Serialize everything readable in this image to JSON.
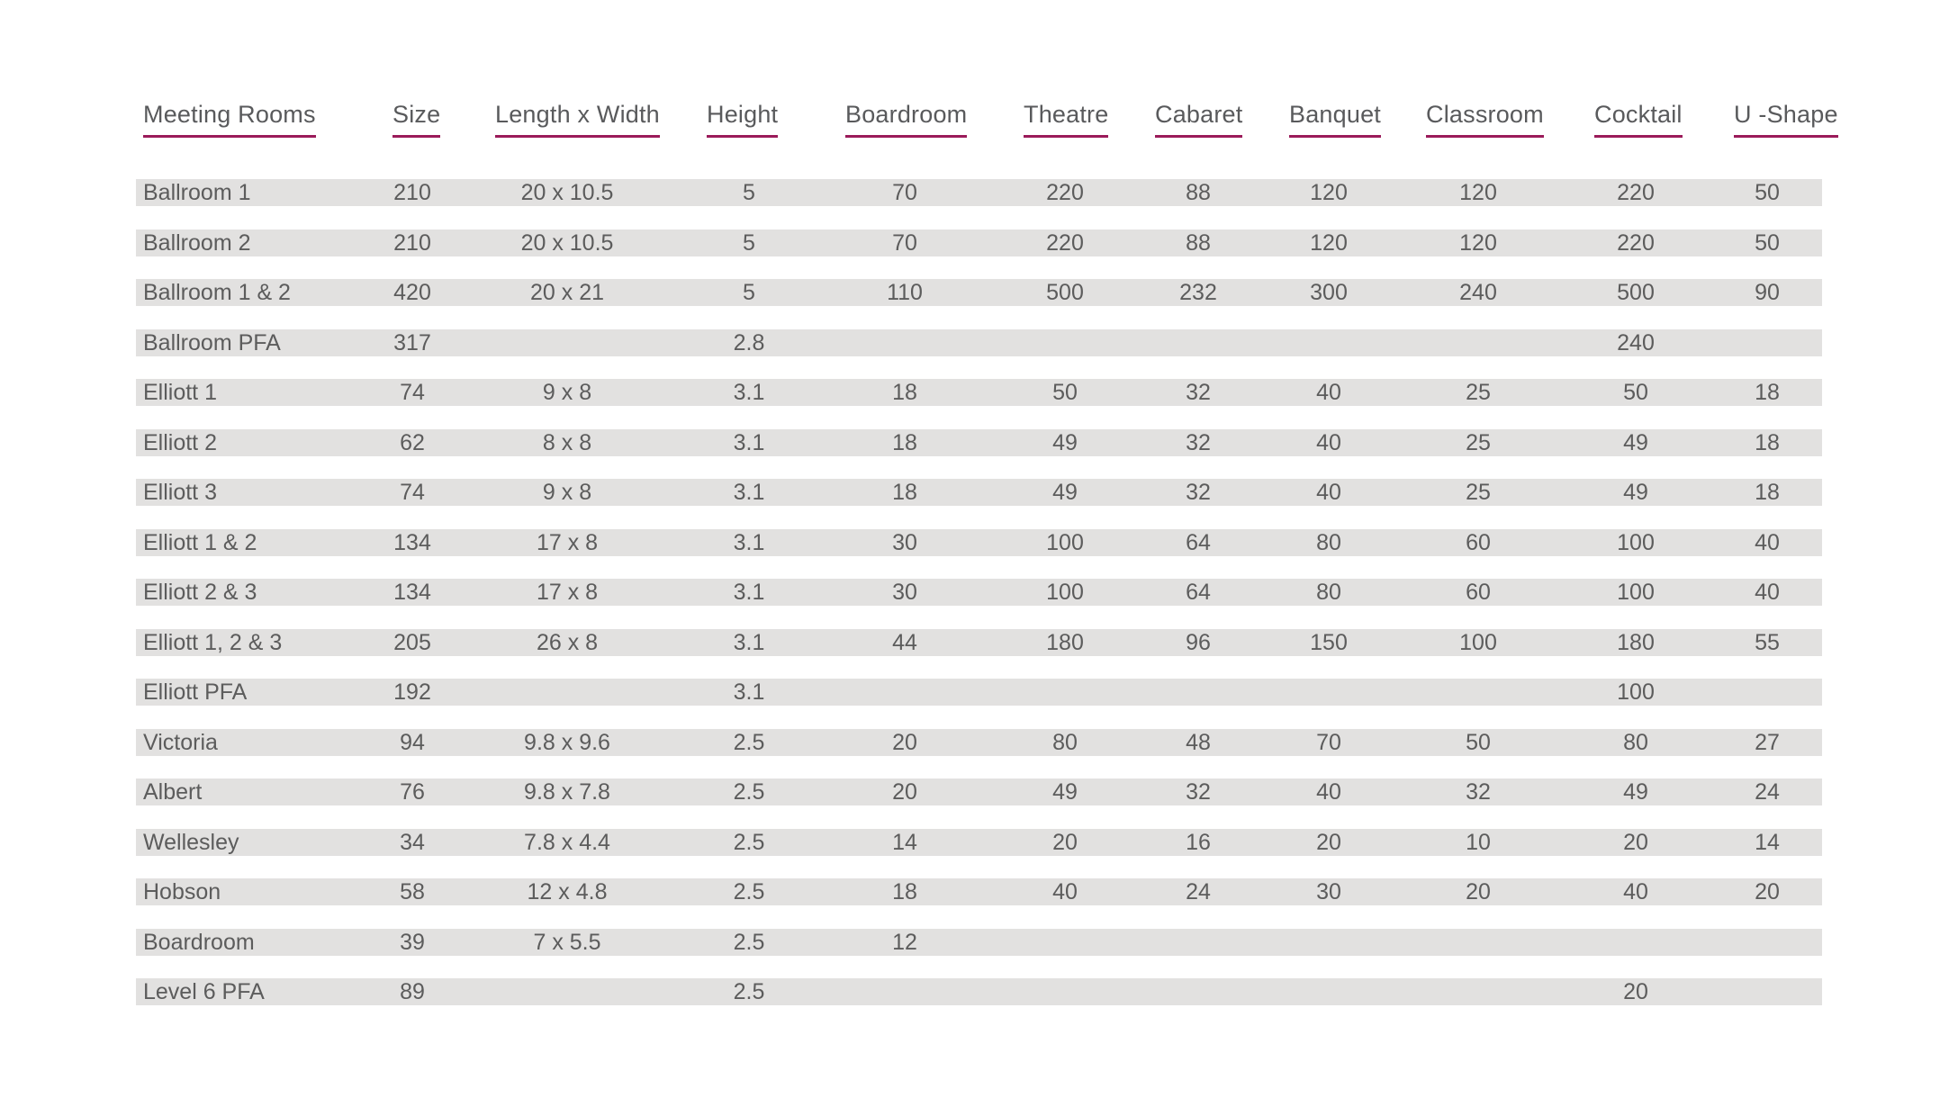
{
  "columns": [
    "Meeting Rooms",
    "Size",
    "Length x Width",
    "Height",
    "Boardroom",
    "Theatre",
    "Cabaret",
    "Banquet",
    "Classroom",
    "Cocktail",
    "U -Shape"
  ],
  "rows": [
    [
      "Ballroom 1",
      "210",
      "20 x 10.5",
      "5",
      "70",
      "220",
      "88",
      "120",
      "120",
      "220",
      "50"
    ],
    [
      "Ballroom 2",
      "210",
      "20 x 10.5",
      "5",
      "70",
      "220",
      "88",
      "120",
      "120",
      "220",
      "50"
    ],
    [
      "Ballroom 1 & 2",
      "420",
      "20 x 21",
      "5",
      "110",
      "500",
      "232",
      "300",
      "240",
      "500",
      "90"
    ],
    [
      "Ballroom PFA",
      "317",
      "",
      "2.8",
      "",
      "",
      "",
      "",
      "",
      "240",
      ""
    ],
    [
      "Elliott 1",
      "74",
      "9 x 8",
      "3.1",
      "18",
      "50",
      "32",
      "40",
      "25",
      "50",
      "18"
    ],
    [
      "Elliott 2",
      "62",
      "8 x 8",
      "3.1",
      "18",
      "49",
      "32",
      "40",
      "25",
      "49",
      "18"
    ],
    [
      "Elliott 3",
      "74",
      "9 x 8",
      "3.1",
      "18",
      "49",
      "32",
      "40",
      "25",
      "49",
      "18"
    ],
    [
      "Elliott 1 & 2",
      "134",
      "17 x 8",
      "3.1",
      "30",
      "100",
      "64",
      "80",
      "60",
      "100",
      "40"
    ],
    [
      "Elliott 2 & 3",
      "134",
      "17 x 8",
      "3.1",
      "30",
      "100",
      "64",
      "80",
      "60",
      "100",
      "40"
    ],
    [
      "Elliott 1, 2 & 3",
      "205",
      "26 x 8",
      "3.1",
      "44",
      "180",
      "96",
      "150",
      "100",
      "180",
      "55"
    ],
    [
      "Elliott PFA",
      "192",
      "",
      "3.1",
      "",
      "",
      "",
      "",
      "",
      "100",
      ""
    ],
    [
      "Victoria",
      "94",
      "9.8 x 9.6",
      "2.5",
      "20",
      "80",
      "48",
      "70",
      "50",
      "80",
      "27"
    ],
    [
      "Albert",
      "76",
      "9.8 x 7.8",
      "2.5",
      "20",
      "49",
      "32",
      "40",
      "32",
      "49",
      "24"
    ],
    [
      "Wellesley",
      "34",
      "7.8 x 4.4",
      "2.5",
      "14",
      "20",
      "16",
      "20",
      "10",
      "20",
      "14"
    ],
    [
      "Hobson",
      "58",
      "12 x 4.8",
      "2.5",
      "18",
      "40",
      "24",
      "30",
      "20",
      "40",
      "20"
    ],
    [
      "Boardroom",
      "39",
      "7 x 5.5",
      "2.5",
      "12",
      "",
      "",
      "",
      "",
      "",
      ""
    ],
    [
      "Level 6 PFA",
      "89",
      "",
      "2.5",
      "",
      "",
      "",
      "",
      "",
      "20",
      ""
    ]
  ],
  "colors": {
    "accent_underline": "#9b1b5a",
    "row_band": "#e2e1e0",
    "text": "#5c5c5c"
  }
}
